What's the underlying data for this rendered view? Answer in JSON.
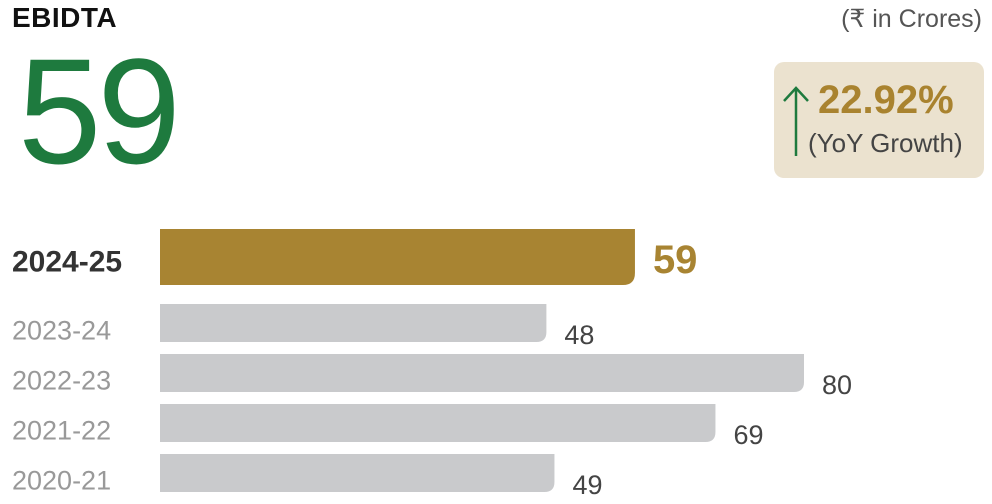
{
  "header": {
    "title": "EBIDTA",
    "unit": "(₹ in Crores)"
  },
  "headline": {
    "value": "59"
  },
  "growth": {
    "percent": "22.92%",
    "label": "(YoY Growth)",
    "icon": "up-arrow-icon",
    "arrow_color": "#1e7a3e"
  },
  "colors": {
    "highlight_bar": "#a88432",
    "other_bar": "#c9cacc",
    "highlight_label": "#333333",
    "other_label": "#999999",
    "highlight_value": "#a88432",
    "other_value": "#444444",
    "headline": "#1e7a3e"
  },
  "chart_data": {
    "type": "bar",
    "orientation": "horizontal",
    "title": "EBIDTA",
    "unit": "(₹ in Crores)",
    "categories": [
      "2024-25",
      "2023-24",
      "2022-23",
      "2021-22",
      "2020-21"
    ],
    "values": [
      59,
      48,
      80,
      69,
      49
    ],
    "highlight": "2024-25",
    "xlim": [
      0,
      80
    ],
    "grid": false,
    "legend": "none"
  }
}
